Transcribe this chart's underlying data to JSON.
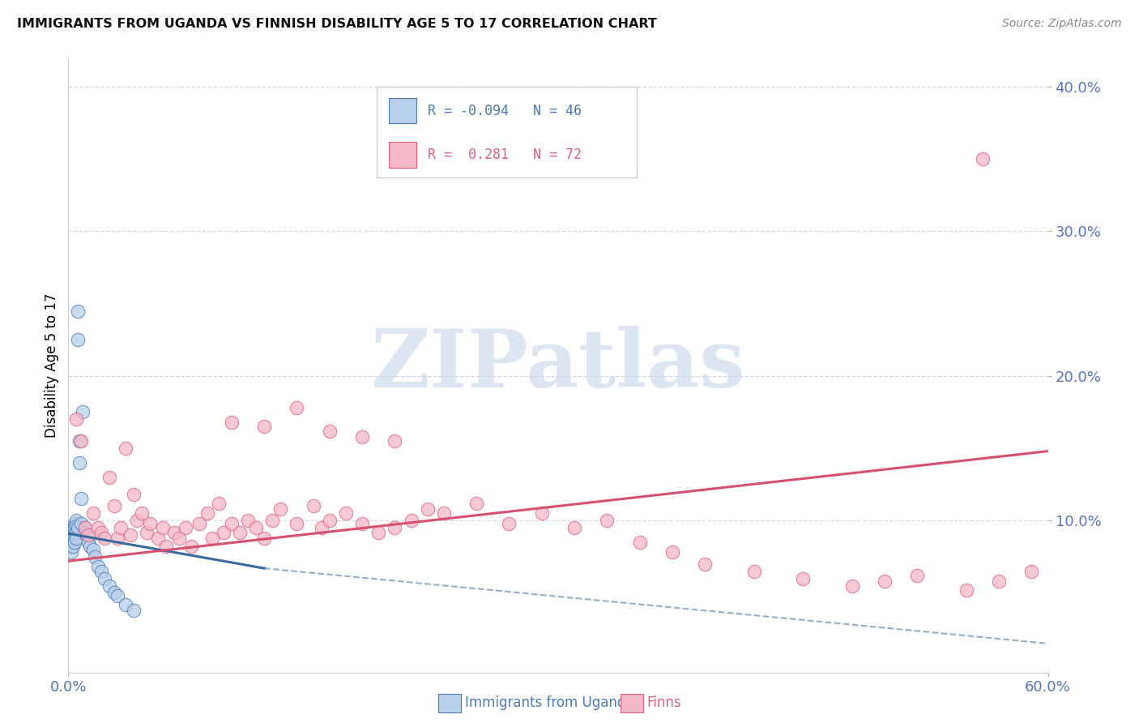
{
  "title": "IMMIGRANTS FROM UGANDA VS FINNISH DISABILITY AGE 5 TO 17 CORRELATION CHART",
  "source": "Source: ZipAtlas.com",
  "ylabel": "Disability Age 5 to 17",
  "xlim": [
    0.0,
    0.6
  ],
  "ylim": [
    -0.005,
    0.42
  ],
  "xtick_positions": [
    0.0,
    0.6
  ],
  "xtick_labels": [
    "0.0%",
    "60.0%"
  ],
  "ytick_positions": [
    0.1,
    0.2,
    0.3,
    0.4
  ],
  "ytick_labels": [
    "10.0%",
    "20.0%",
    "30.0%",
    "40.0%"
  ],
  "legend_R_blue": "-0.094",
  "legend_N_blue": "46",
  "legend_R_pink": "0.281",
  "legend_N_pink": "72",
  "blue_fill": "#b8d0ea",
  "pink_fill": "#f5b8c8",
  "blue_edge": "#4a7ab5",
  "pink_edge": "#e0607a",
  "blue_line": "#3a6aa0",
  "pink_line": "#d85070",
  "axis_tick_color": "#5575c0",
  "grid_color": "#d0d8e8",
  "watermark_color": "#c5d5e8",
  "blue_scatter_x": [
    0.001,
    0.001,
    0.001,
    0.001,
    0.002,
    0.002,
    0.002,
    0.002,
    0.002,
    0.002,
    0.003,
    0.003,
    0.003,
    0.003,
    0.003,
    0.004,
    0.004,
    0.004,
    0.004,
    0.005,
    0.005,
    0.005,
    0.005,
    0.006,
    0.006,
    0.006,
    0.007,
    0.007,
    0.008,
    0.008,
    0.009,
    0.01,
    0.01,
    0.011,
    0.012,
    0.013,
    0.015,
    0.016,
    0.018,
    0.02,
    0.022,
    0.025,
    0.028,
    0.03,
    0.035,
    0.04
  ],
  "blue_scatter_y": [
    0.09,
    0.088,
    0.086,
    0.082,
    0.092,
    0.09,
    0.088,
    0.085,
    0.082,
    0.078,
    0.095,
    0.092,
    0.09,
    0.087,
    0.082,
    0.098,
    0.095,
    0.088,
    0.085,
    0.1,
    0.096,
    0.092,
    0.088,
    0.245,
    0.225,
    0.095,
    0.155,
    0.14,
    0.115,
    0.098,
    0.175,
    0.095,
    0.092,
    0.09,
    0.085,
    0.082,
    0.08,
    0.075,
    0.068,
    0.065,
    0.06,
    0.055,
    0.05,
    0.048,
    0.042,
    0.038
  ],
  "pink_scatter_x": [
    0.005,
    0.008,
    0.01,
    0.012,
    0.015,
    0.018,
    0.02,
    0.022,
    0.025,
    0.028,
    0.03,
    0.032,
    0.035,
    0.038,
    0.04,
    0.042,
    0.045,
    0.048,
    0.05,
    0.055,
    0.058,
    0.06,
    0.065,
    0.068,
    0.072,
    0.075,
    0.08,
    0.085,
    0.088,
    0.092,
    0.095,
    0.1,
    0.105,
    0.11,
    0.115,
    0.12,
    0.125,
    0.13,
    0.14,
    0.15,
    0.155,
    0.16,
    0.17,
    0.18,
    0.19,
    0.2,
    0.21,
    0.22,
    0.23,
    0.25,
    0.27,
    0.29,
    0.31,
    0.33,
    0.35,
    0.37,
    0.39,
    0.42,
    0.45,
    0.48,
    0.5,
    0.52,
    0.55,
    0.57,
    0.59,
    0.1,
    0.12,
    0.14,
    0.16,
    0.18,
    0.2,
    0.56
  ],
  "pink_scatter_y": [
    0.17,
    0.155,
    0.095,
    0.09,
    0.105,
    0.095,
    0.092,
    0.088,
    0.13,
    0.11,
    0.088,
    0.095,
    0.15,
    0.09,
    0.118,
    0.1,
    0.105,
    0.092,
    0.098,
    0.088,
    0.095,
    0.082,
    0.092,
    0.088,
    0.095,
    0.082,
    0.098,
    0.105,
    0.088,
    0.112,
    0.092,
    0.098,
    0.092,
    0.1,
    0.095,
    0.088,
    0.1,
    0.108,
    0.098,
    0.11,
    0.095,
    0.1,
    0.105,
    0.098,
    0.092,
    0.095,
    0.1,
    0.108,
    0.105,
    0.112,
    0.098,
    0.105,
    0.095,
    0.1,
    0.085,
    0.078,
    0.07,
    0.065,
    0.06,
    0.055,
    0.058,
    0.062,
    0.052,
    0.058,
    0.065,
    0.168,
    0.165,
    0.178,
    0.162,
    0.158,
    0.155,
    0.35
  ],
  "blue_trend_x0": 0.0,
  "blue_trend_x_solid_end": 0.12,
  "blue_trend_x_dash_end": 0.6,
  "blue_trend_y_start": 0.091,
  "blue_trend_y_solid_end": 0.067,
  "blue_trend_y_dash_end": 0.015,
  "pink_trend_x0": 0.0,
  "pink_trend_x1": 0.6,
  "pink_trend_y0": 0.072,
  "pink_trend_y1": 0.148
}
